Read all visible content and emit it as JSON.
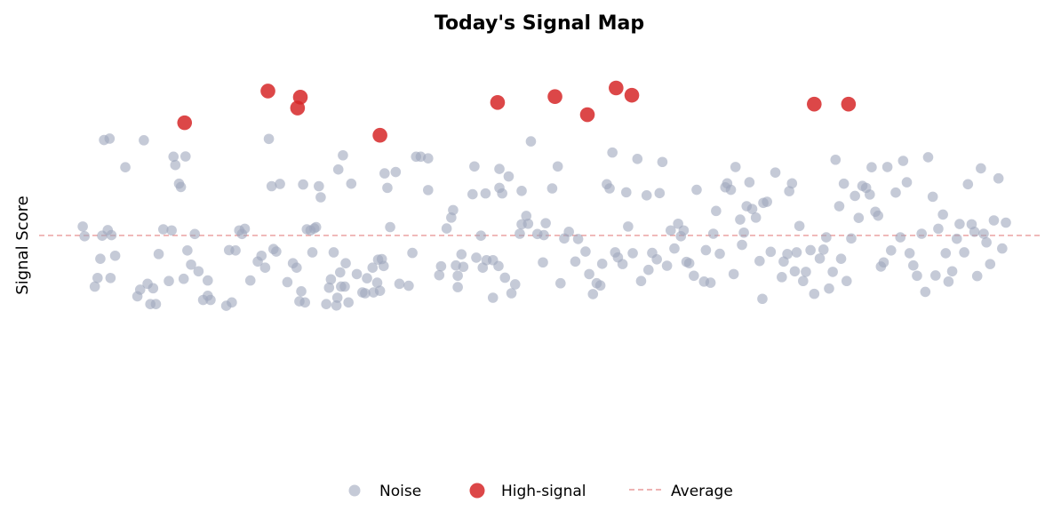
{
  "chart_data": {
    "type": "scatter",
    "title": "Today's Signal Map",
    "xlabel": "",
    "ylabel": "Signal Score",
    "xlim": [
      0,
      100
    ],
    "ylim": [
      0,
      100
    ],
    "grid": false,
    "legend_position": "bottom",
    "average": 47,
    "colors": {
      "noise": "#9ea7bc",
      "signal": "#d62728",
      "average_line": "#e99a9a"
    },
    "series": [
      {
        "name": "Noise",
        "points": [
          [
            0.3,
            50.2
          ],
          [
            0.5,
            46.7
          ],
          [
            1.6,
            28.6
          ],
          [
            1.9,
            31.7
          ],
          [
            2.2,
            38.6
          ],
          [
            2.4,
            46.9
          ],
          [
            2.6,
            81.3
          ],
          [
            3.0,
            48.9
          ],
          [
            3.2,
            81.8
          ],
          [
            3.3,
            31.7
          ],
          [
            3.4,
            47.1
          ],
          [
            3.8,
            39.7
          ],
          [
            4.9,
            71.5
          ],
          [
            6.2,
            25.1
          ],
          [
            6.5,
            27.5
          ],
          [
            6.9,
            81.2
          ],
          [
            7.3,
            29.6
          ],
          [
            7.6,
            22.3
          ],
          [
            7.9,
            28.0
          ],
          [
            8.2,
            22.3
          ],
          [
            8.5,
            40.3
          ],
          [
            9.0,
            49.2
          ],
          [
            9.6,
            30.6
          ],
          [
            9.9,
            48.8
          ],
          [
            10.1,
            75.3
          ],
          [
            10.3,
            72.3
          ],
          [
            10.7,
            65.6
          ],
          [
            10.9,
            64.4
          ],
          [
            11.2,
            31.4
          ],
          [
            11.4,
            75.4
          ],
          [
            11.6,
            41.6
          ],
          [
            12.0,
            36.5
          ],
          [
            12.4,
            47.5
          ],
          [
            12.8,
            34.1
          ],
          [
            13.3,
            23.8
          ],
          [
            13.8,
            25.3
          ],
          [
            13.8,
            30.8
          ],
          [
            14.1,
            23.8
          ],
          [
            15.8,
            21.7
          ],
          [
            16.1,
            41.7
          ],
          [
            16.4,
            22.9
          ],
          [
            16.8,
            41.6
          ],
          [
            17.2,
            48.8
          ],
          [
            17.5,
            47.5
          ],
          [
            17.8,
            49.4
          ],
          [
            18.4,
            30.8
          ],
          [
            19.2,
            37.6
          ],
          [
            19.6,
            39.7
          ],
          [
            20.0,
            35.4
          ],
          [
            20.4,
            81.7
          ],
          [
            20.7,
            64.7
          ],
          [
            20.9,
            42.1
          ],
          [
            21.2,
            41.2
          ],
          [
            21.6,
            65.5
          ],
          [
            22.4,
            30.2
          ],
          [
            23.0,
            37.0
          ],
          [
            23.4,
            35.4
          ],
          [
            23.7,
            23.3
          ],
          [
            23.9,
            26.9
          ],
          [
            24.1,
            65.3
          ],
          [
            24.3,
            22.9
          ],
          [
            24.5,
            49.2
          ],
          [
            24.9,
            48.8
          ],
          [
            25.1,
            40.9
          ],
          [
            25.3,
            49.5
          ],
          [
            25.5,
            50.0
          ],
          [
            25.8,
            64.7
          ],
          [
            26.0,
            60.7
          ],
          [
            26.6,
            22.3
          ],
          [
            26.9,
            28.2
          ],
          [
            27.1,
            31.2
          ],
          [
            27.4,
            40.9
          ],
          [
            27.7,
            21.8
          ],
          [
            27.8,
            24.6
          ],
          [
            27.9,
            70.7
          ],
          [
            28.1,
            33.7
          ],
          [
            28.2,
            28.6
          ],
          [
            28.4,
            75.8
          ],
          [
            28.6,
            28.6
          ],
          [
            28.7,
            37.0
          ],
          [
            29.0,
            22.9
          ],
          [
            29.3,
            65.6
          ],
          [
            29.9,
            33.1
          ],
          [
            30.5,
            26.5
          ],
          [
            30.8,
            26.2
          ],
          [
            31.0,
            31.6
          ],
          [
            31.6,
            35.4
          ],
          [
            31.7,
            26.5
          ],
          [
            32.1,
            30.0
          ],
          [
            32.2,
            38.3
          ],
          [
            32.4,
            27.1
          ],
          [
            32.6,
            38.5
          ],
          [
            32.8,
            36.0
          ],
          [
            32.9,
            69.3
          ],
          [
            33.2,
            64.1
          ],
          [
            33.5,
            50.0
          ],
          [
            34.1,
            69.8
          ],
          [
            34.5,
            29.6
          ],
          [
            35.5,
            28.9
          ],
          [
            35.9,
            40.7
          ],
          [
            36.3,
            75.3
          ],
          [
            36.8,
            75.3
          ],
          [
            37.6,
            74.7
          ],
          [
            37.6,
            63.3
          ],
          [
            38.8,
            32.7
          ],
          [
            39.0,
            35.9
          ],
          [
            39.6,
            49.5
          ],
          [
            40.1,
            53.4
          ],
          [
            40.3,
            56.1
          ],
          [
            40.6,
            36.2
          ],
          [
            40.8,
            32.5
          ],
          [
            40.8,
            28.4
          ],
          [
            41.2,
            40.2
          ],
          [
            41.4,
            35.7
          ],
          [
            42.4,
            61.8
          ],
          [
            42.6,
            71.8
          ],
          [
            42.8,
            39.0
          ],
          [
            43.3,
            46.9
          ],
          [
            43.5,
            35.4
          ],
          [
            43.8,
            62.1
          ],
          [
            43.9,
            38.1
          ],
          [
            44.6,
            38.1
          ],
          [
            44.6,
            24.6
          ],
          [
            45.2,
            36.0
          ],
          [
            45.3,
            64.1
          ],
          [
            45.3,
            70.9
          ],
          [
            45.6,
            62.1
          ],
          [
            45.9,
            31.8
          ],
          [
            46.3,
            68.2
          ],
          [
            46.6,
            26.2
          ],
          [
            47.0,
            29.4
          ],
          [
            47.5,
            47.6
          ],
          [
            47.7,
            63.0
          ],
          [
            47.7,
            51.0
          ],
          [
            48.2,
            54.0
          ],
          [
            48.4,
            51.2
          ],
          [
            48.7,
            80.8
          ],
          [
            49.4,
            47.5
          ],
          [
            50.0,
            37.3
          ],
          [
            50.1,
            47.1
          ],
          [
            50.3,
            51.4
          ],
          [
            51.0,
            63.9
          ],
          [
            51.6,
            71.8
          ],
          [
            51.9,
            29.8
          ],
          [
            52.3,
            45.9
          ],
          [
            52.8,
            48.3
          ],
          [
            53.5,
            37.6
          ],
          [
            53.8,
            45.7
          ],
          [
            54.6,
            41.2
          ],
          [
            55.0,
            33.1
          ],
          [
            55.4,
            25.9
          ],
          [
            55.8,
            29.8
          ],
          [
            56.2,
            29.0
          ],
          [
            56.4,
            36.8
          ],
          [
            56.9,
            65.4
          ],
          [
            57.2,
            63.9
          ],
          [
            57.5,
            76.8
          ],
          [
            57.8,
            40.9
          ],
          [
            58.1,
            39.1
          ],
          [
            58.6,
            36.7
          ],
          [
            59.0,
            62.5
          ],
          [
            59.2,
            50.2
          ],
          [
            59.7,
            40.6
          ],
          [
            60.2,
            74.5
          ],
          [
            60.6,
            30.6
          ],
          [
            61.2,
            61.4
          ],
          [
            61.4,
            34.6
          ],
          [
            61.8,
            40.7
          ],
          [
            62.3,
            38.4
          ],
          [
            62.6,
            62.2
          ],
          [
            62.9,
            73.4
          ],
          [
            63.4,
            36.1
          ],
          [
            63.8,
            48.8
          ],
          [
            64.2,
            42.3
          ],
          [
            64.6,
            51.2
          ],
          [
            64.9,
            46.7
          ],
          [
            65.2,
            48.8
          ],
          [
            65.5,
            37.5
          ],
          [
            65.8,
            37.0
          ],
          [
            66.3,
            32.5
          ],
          [
            66.6,
            63.4
          ],
          [
            67.4,
            30.4
          ],
          [
            67.6,
            41.7
          ],
          [
            68.1,
            30.0
          ],
          [
            68.4,
            47.6
          ],
          [
            68.7,
            55.8
          ],
          [
            69.1,
            40.4
          ],
          [
            69.7,
            64.3
          ],
          [
            69.9,
            65.7
          ],
          [
            70.3,
            63.4
          ],
          [
            70.6,
            33.1
          ],
          [
            70.8,
            71.6
          ],
          [
            71.3,
            52.7
          ],
          [
            71.5,
            43.6
          ],
          [
            71.7,
            48.0
          ],
          [
            72.0,
            57.5
          ],
          [
            72.3,
            66.1
          ],
          [
            72.6,
            56.5
          ],
          [
            73.0,
            53.4
          ],
          [
            73.4,
            37.8
          ],
          [
            73.7,
            24.2
          ],
          [
            73.8,
            58.7
          ],
          [
            74.2,
            59.1
          ],
          [
            74.6,
            41.1
          ],
          [
            75.1,
            69.6
          ],
          [
            75.8,
            32.0
          ],
          [
            76.0,
            37.6
          ],
          [
            76.4,
            40.3
          ],
          [
            76.6,
            62.9
          ],
          [
            76.9,
            65.7
          ],
          [
            77.2,
            34.1
          ],
          [
            77.4,
            40.9
          ],
          [
            77.7,
            50.4
          ],
          [
            78.1,
            30.6
          ],
          [
            78.4,
            33.9
          ],
          [
            78.9,
            41.7
          ],
          [
            79.3,
            26.0
          ],
          [
            79.9,
            38.7
          ],
          [
            80.3,
            41.9
          ],
          [
            80.6,
            46.3
          ],
          [
            80.9,
            27.9
          ],
          [
            81.3,
            33.9
          ],
          [
            81.6,
            74.2
          ],
          [
            82.0,
            57.5
          ],
          [
            82.2,
            38.6
          ],
          [
            82.5,
            65.6
          ],
          [
            82.8,
            30.6
          ],
          [
            83.3,
            45.9
          ],
          [
            83.7,
            61.2
          ],
          [
            84.1,
            53.3
          ],
          [
            84.5,
            64.8
          ],
          [
            84.9,
            64.1
          ],
          [
            85.3,
            61.7
          ],
          [
            85.5,
            71.5
          ],
          [
            85.9,
            55.5
          ],
          [
            86.2,
            54.1
          ],
          [
            86.5,
            35.8
          ],
          [
            86.8,
            37.3
          ],
          [
            87.2,
            71.6
          ],
          [
            87.6,
            41.6
          ],
          [
            88.1,
            62.4
          ],
          [
            88.6,
            46.3
          ],
          [
            88.9,
            73.8
          ],
          [
            89.3,
            66.1
          ],
          [
            89.6,
            40.6
          ],
          [
            90.0,
            36.2
          ],
          [
            90.4,
            32.5
          ],
          [
            90.9,
            47.6
          ],
          [
            91.3,
            26.7
          ],
          [
            91.6,
            75.1
          ],
          [
            92.1,
            60.9
          ],
          [
            92.4,
            32.6
          ],
          [
            92.7,
            49.4
          ],
          [
            93.2,
            54.5
          ],
          [
            93.5,
            40.6
          ],
          [
            93.8,
            30.4
          ],
          [
            94.2,
            34.1
          ],
          [
            94.7,
            45.8
          ],
          [
            95.0,
            51.1
          ],
          [
            95.5,
            40.9
          ],
          [
            95.9,
            65.4
          ],
          [
            96.3,
            51.0
          ],
          [
            96.6,
            48.3
          ],
          [
            96.9,
            32.4
          ],
          [
            97.3,
            71.1
          ],
          [
            97.6,
            47.6
          ],
          [
            97.9,
            44.5
          ],
          [
            98.3,
            36.7
          ],
          [
            98.7,
            52.4
          ],
          [
            99.2,
            67.5
          ],
          [
            99.6,
            42.3
          ],
          [
            100.0,
            51.6
          ]
        ]
      },
      {
        "name": "High-signal",
        "points": [
          [
            11.3,
            87.5
          ],
          [
            20.3,
            98.9
          ],
          [
            23.5,
            92.8
          ],
          [
            23.8,
            96.7
          ],
          [
            32.4,
            83.0
          ],
          [
            45.1,
            94.8
          ],
          [
            51.3,
            96.9
          ],
          [
            54.8,
            90.4
          ],
          [
            57.9,
            100.0
          ],
          [
            59.6,
            97.4
          ],
          [
            79.3,
            94.2
          ],
          [
            83.0,
            94.2
          ]
        ]
      }
    ],
    "legend": [
      {
        "key": "noise",
        "label": "Noise"
      },
      {
        "key": "signal",
        "label": "High-signal"
      },
      {
        "key": "average",
        "label": "Average"
      }
    ]
  }
}
